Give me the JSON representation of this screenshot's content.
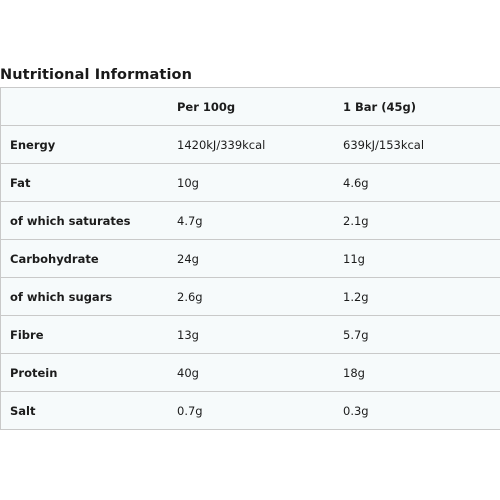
{
  "title": "Nutritional Information",
  "table": {
    "headers": [
      "",
      "Per 100g",
      "1 Bar (45g)"
    ],
    "rows": [
      {
        "label": "Energy",
        "per100g": "1420kJ/339kcal",
        "perBar": "639kJ/153kcal"
      },
      {
        "label": "Fat",
        "per100g": "10g",
        "perBar": "4.6g"
      },
      {
        "label": "of which saturates",
        "per100g": "4.7g",
        "perBar": "2.1g"
      },
      {
        "label": "Carbohydrate",
        "per100g": "24g",
        "perBar": "11g"
      },
      {
        "label": "of which sugars",
        "per100g": "2.6g",
        "perBar": "1.2g"
      },
      {
        "label": "Fibre",
        "per100g": "13g",
        "perBar": "5.7g"
      },
      {
        "label": "Protein",
        "per100g": "40g",
        "perBar": "18g"
      },
      {
        "label": "Salt",
        "per100g": "0.7g",
        "perBar": "0.3g"
      }
    ]
  },
  "colors": {
    "row_background": "#f6fafb",
    "border": "#c9c9c9",
    "text": "#1c1c1c"
  }
}
